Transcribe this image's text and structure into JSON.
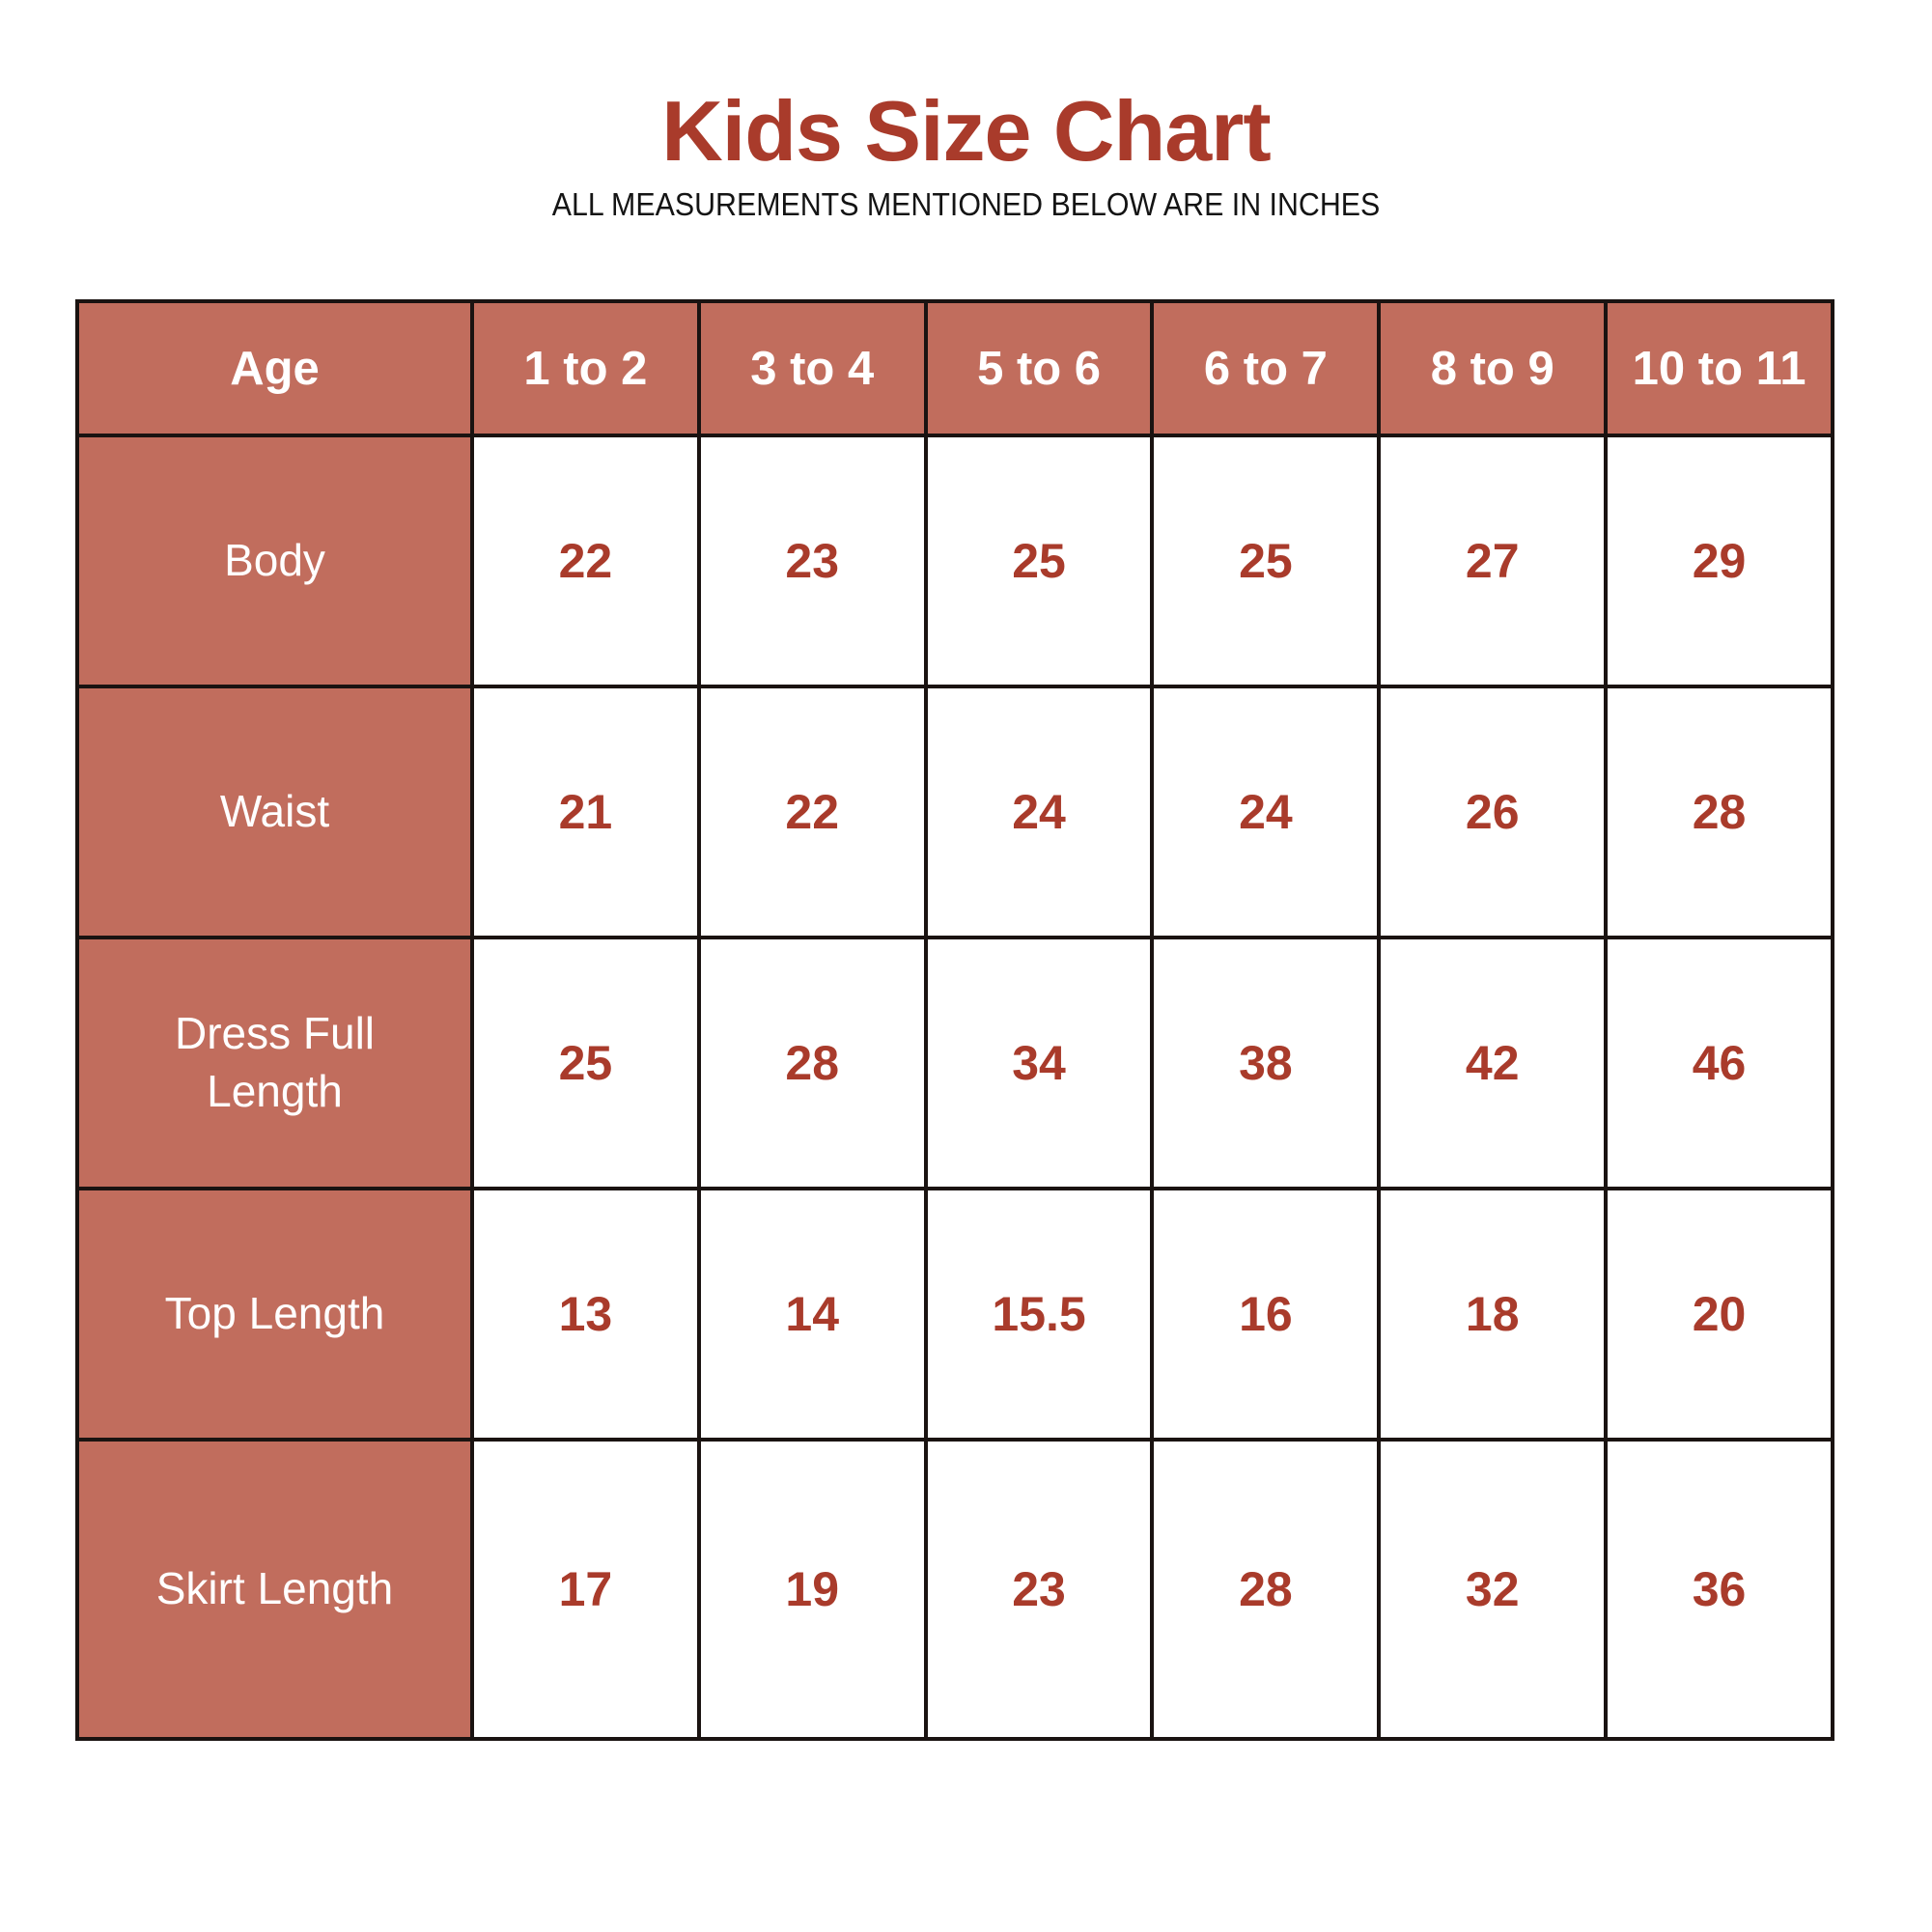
{
  "page": {
    "title": "Kids Size Chart",
    "subtitle": "ALL MEASUREMENTS MENTIONED BELOW ARE IN INCHES"
  },
  "colors": {
    "accent_red": "#a93b2b",
    "header_cell_bg": "#c16d5d",
    "grid_border": "#1a1311",
    "header_text": "#ffffff",
    "page_bg": "#ffffff"
  },
  "chart_data": {
    "type": "table",
    "title": "Kids Size Chart",
    "subtitle": "ALL MEASUREMENTS MENTIONED BELOW ARE IN INCHES",
    "units": "inches",
    "columns": [
      "Age",
      "1 to 2",
      "3 to 4",
      "5 to 6",
      "6 to 7",
      "8 to 9",
      "10 to 11"
    ],
    "rows": [
      {
        "label": "Body",
        "values": [
          22,
          23,
          25,
          25,
          27,
          29
        ]
      },
      {
        "label": "Waist",
        "values": [
          21,
          22,
          24,
          24,
          26,
          28
        ]
      },
      {
        "label": "Dress Full Length",
        "values": [
          25,
          28,
          34,
          38,
          42,
          46
        ]
      },
      {
        "label": "Top Length",
        "values": [
          13,
          14,
          15.5,
          16,
          18,
          20
        ]
      },
      {
        "label": "Skirt Length",
        "values": [
          17,
          19,
          23,
          28,
          32,
          36
        ]
      }
    ]
  }
}
